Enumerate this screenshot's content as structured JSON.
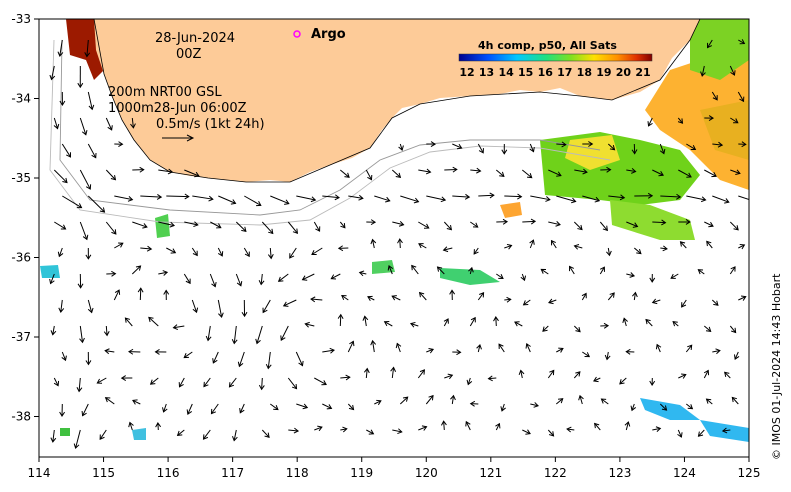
{
  "map": {
    "x_ticks": [
      "114",
      "115",
      "116",
      "117",
      "118",
      "119",
      "120",
      "121",
      "122",
      "123",
      "124",
      "125"
    ],
    "y_ticks": [
      "-33",
      "-34",
      "-35",
      "-36",
      "-37",
      "-38"
    ],
    "date_line1": "28-Jun-2024",
    "date_line2": "00Z",
    "argo_label": "Argo",
    "depth_line1": "200m  NRT00 GSL",
    "depth_line2": "1000m28-Jun 06:00Z",
    "scale_label": "0.5m/s (1kt 24h)",
    "credit": "© IMOS 01-Jul-2024 14:43 Hobart"
  },
  "colorbar": {
    "title": "4h comp, p50, All Sats",
    "labels": [
      "12",
      "13",
      "14",
      "15",
      "16",
      "17",
      "18",
      "19",
      "20",
      "21"
    ]
  },
  "colors": {
    "land": "#FDCB98",
    "sst_warm": "#FDB231",
    "sst_green": "#6FD21A",
    "sst_red": "#9C1A00",
    "sst_cyan": "#30C4D8",
    "argo": "#FF00FF"
  }
}
